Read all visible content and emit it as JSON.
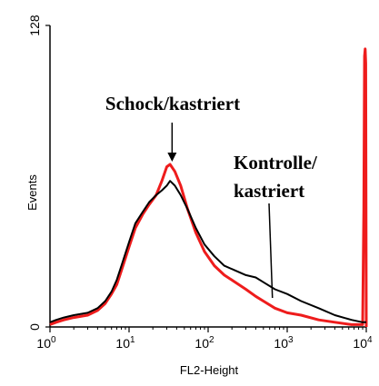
{
  "chart_data": {
    "type": "line",
    "xlabel": "FL2-Height",
    "ylabel": "Events",
    "xscale": "log",
    "xlim": [
      1,
      10000
    ],
    "ylim": [
      0,
      128
    ],
    "x_ticks": [
      {
        "base": "10",
        "exp": "0"
      },
      {
        "base": "10",
        "exp": "1"
      },
      {
        "base": "10",
        "exp": "2"
      },
      {
        "base": "10",
        "exp": "3"
      },
      {
        "base": "10",
        "exp": "4"
      }
    ],
    "y_ticks": [
      "0",
      "128"
    ],
    "grid": false,
    "colors": {
      "red": "#ee1c1c",
      "black": "#000000"
    },
    "annotations": [
      {
        "lines": [
          "Schock/kastriert"
        ],
        "points_to_x": 35,
        "color": "black"
      },
      {
        "lines": [
          "Kontrolle/",
          "kastriert"
        ],
        "points_to_x": 650,
        "color": "black"
      }
    ],
    "series": [
      {
        "color": "red",
        "points": [
          [
            1,
            1
          ],
          [
            1.2,
            2
          ],
          [
            1.5,
            3
          ],
          [
            2,
            4
          ],
          [
            3,
            5
          ],
          [
            4,
            7
          ],
          [
            5,
            10
          ],
          [
            6,
            14
          ],
          [
            7,
            18
          ],
          [
            8,
            24
          ],
          [
            10,
            34
          ],
          [
            12,
            42
          ],
          [
            15,
            48
          ],
          [
            18,
            52
          ],
          [
            22,
            56
          ],
          [
            26,
            62
          ],
          [
            30,
            68
          ],
          [
            33,
            69
          ],
          [
            38,
            66
          ],
          [
            45,
            60
          ],
          [
            55,
            50
          ],
          [
            70,
            40
          ],
          [
            90,
            32
          ],
          [
            120,
            26
          ],
          [
            160,
            22
          ],
          [
            220,
            19
          ],
          [
            300,
            16
          ],
          [
            400,
            13
          ],
          [
            500,
            11
          ],
          [
            700,
            8
          ],
          [
            1000,
            6
          ],
          [
            1500,
            5
          ],
          [
            2500,
            3
          ],
          [
            4000,
            2
          ],
          [
            6500,
            1
          ],
          [
            9000,
            1
          ],
          [
            9300,
            50
          ],
          [
            9500,
            115
          ],
          [
            9700,
            118
          ],
          [
            9850,
            112
          ],
          [
            10000,
            0
          ]
        ]
      },
      {
        "color": "black",
        "points": [
          [
            1,
            2
          ],
          [
            1.2,
            3
          ],
          [
            1.5,
            4
          ],
          [
            2,
            5
          ],
          [
            3,
            6
          ],
          [
            4,
            8
          ],
          [
            5,
            11
          ],
          [
            6,
            15
          ],
          [
            7,
            20
          ],
          [
            8,
            26
          ],
          [
            10,
            36
          ],
          [
            12,
            44
          ],
          [
            15,
            49
          ],
          [
            18,
            53
          ],
          [
            22,
            56
          ],
          [
            26,
            58
          ],
          [
            30,
            60
          ],
          [
            33,
            62
          ],
          [
            38,
            60
          ],
          [
            45,
            56
          ],
          [
            55,
            50
          ],
          [
            70,
            42
          ],
          [
            90,
            35
          ],
          [
            120,
            30
          ],
          [
            160,
            26
          ],
          [
            220,
            24
          ],
          [
            300,
            22
          ],
          [
            400,
            21
          ],
          [
            500,
            19
          ],
          [
            700,
            16
          ],
          [
            1000,
            14
          ],
          [
            1500,
            11
          ],
          [
            2500,
            8
          ],
          [
            4000,
            5
          ],
          [
            6500,
            3
          ],
          [
            9000,
            2
          ],
          [
            10000,
            2
          ]
        ]
      }
    ]
  }
}
